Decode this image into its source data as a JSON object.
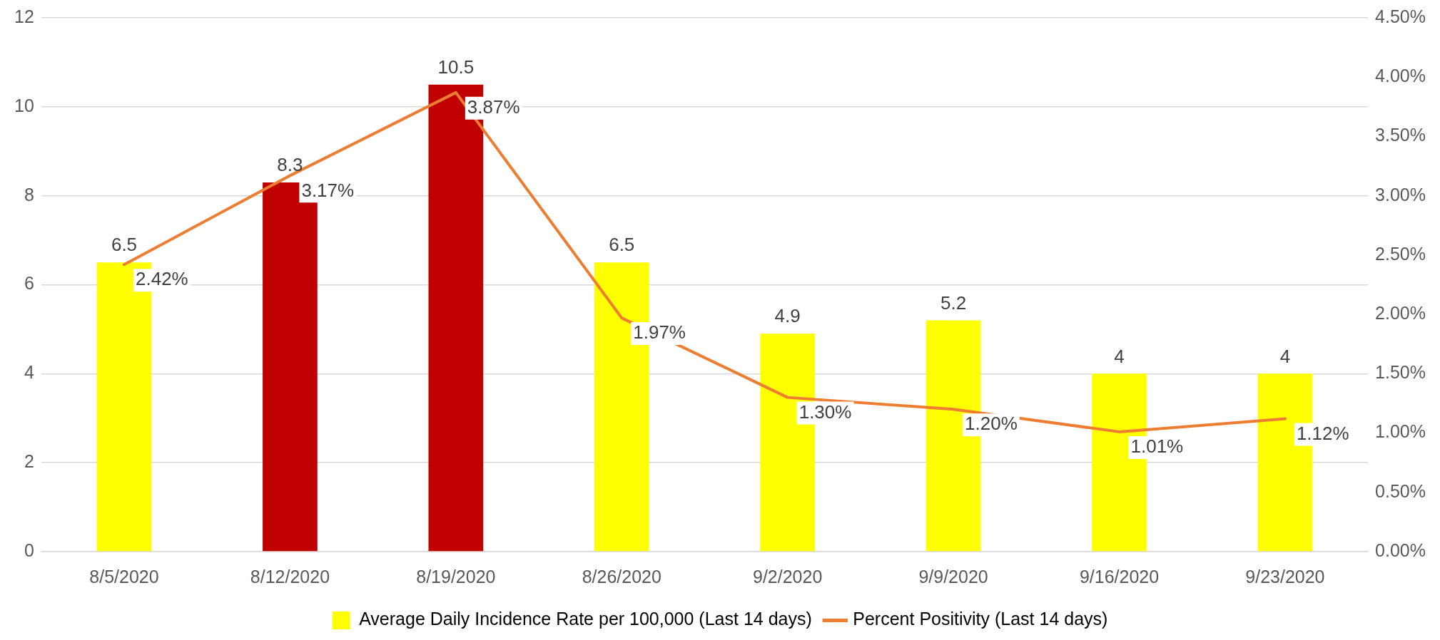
{
  "chart_data": {
    "type": "bar",
    "categories": [
      "8/5/2020",
      "8/12/2020",
      "8/19/2020",
      "8/26/2020",
      "9/2/2020",
      "9/9/2020",
      "9/16/2020",
      "9/23/2020"
    ],
    "series": [
      {
        "name": "Average Daily Incidence Rate per 100,000 (Last 14 days)",
        "color": "#ffff00",
        "colors": [
          "#ffff00",
          "#c00000",
          "#c00000",
          "#ffff00",
          "#ffff00",
          "#ffff00",
          "#ffff00",
          "#ffff00"
        ],
        "values": [
          6.5,
          8.3,
          10.5,
          6.5,
          4.9,
          5.2,
          4,
          4
        ],
        "value_labels": [
          "6.5",
          "8.3",
          "10.5",
          "6.5",
          "4.9",
          "5.2",
          "4",
          "4"
        ]
      },
      {
        "name": "Percent Positivity (Last 14 days)",
        "type": "line",
        "axis": "y2",
        "color": "#ed7d31",
        "values": [
          2.42,
          3.17,
          3.87,
          1.97,
          1.3,
          1.2,
          1.01,
          1.12
        ],
        "value_labels": [
          "2.42%",
          "3.17%",
          "3.87%",
          "1.97%",
          "1.30%",
          "1.20%",
          "1.01%",
          "1.12%"
        ]
      }
    ],
    "ylim": [
      0,
      12
    ],
    "yticks": [
      0,
      2,
      4,
      6,
      8,
      10,
      12
    ],
    "y2lim": [
      0,
      4.5
    ],
    "y2ticks": [
      {
        "value": 0,
        "label": "0.00%"
      },
      {
        "value": 0.5,
        "label": "0.50%"
      },
      {
        "value": 1,
        "label": "1.00%"
      },
      {
        "value": 1.5,
        "label": "1.50%"
      },
      {
        "value": 2,
        "label": "2.00%"
      },
      {
        "value": 2.5,
        "label": "2.50%"
      },
      {
        "value": 3,
        "label": "3.00%"
      },
      {
        "value": 3.5,
        "label": "3.50%"
      },
      {
        "value": 4,
        "label": "4.00%"
      },
      {
        "value": 4.5,
        "label": "4.50%"
      }
    ],
    "grid": "y",
    "legend": "bottom",
    "marker": "none",
    "line_style": "solid"
  }
}
